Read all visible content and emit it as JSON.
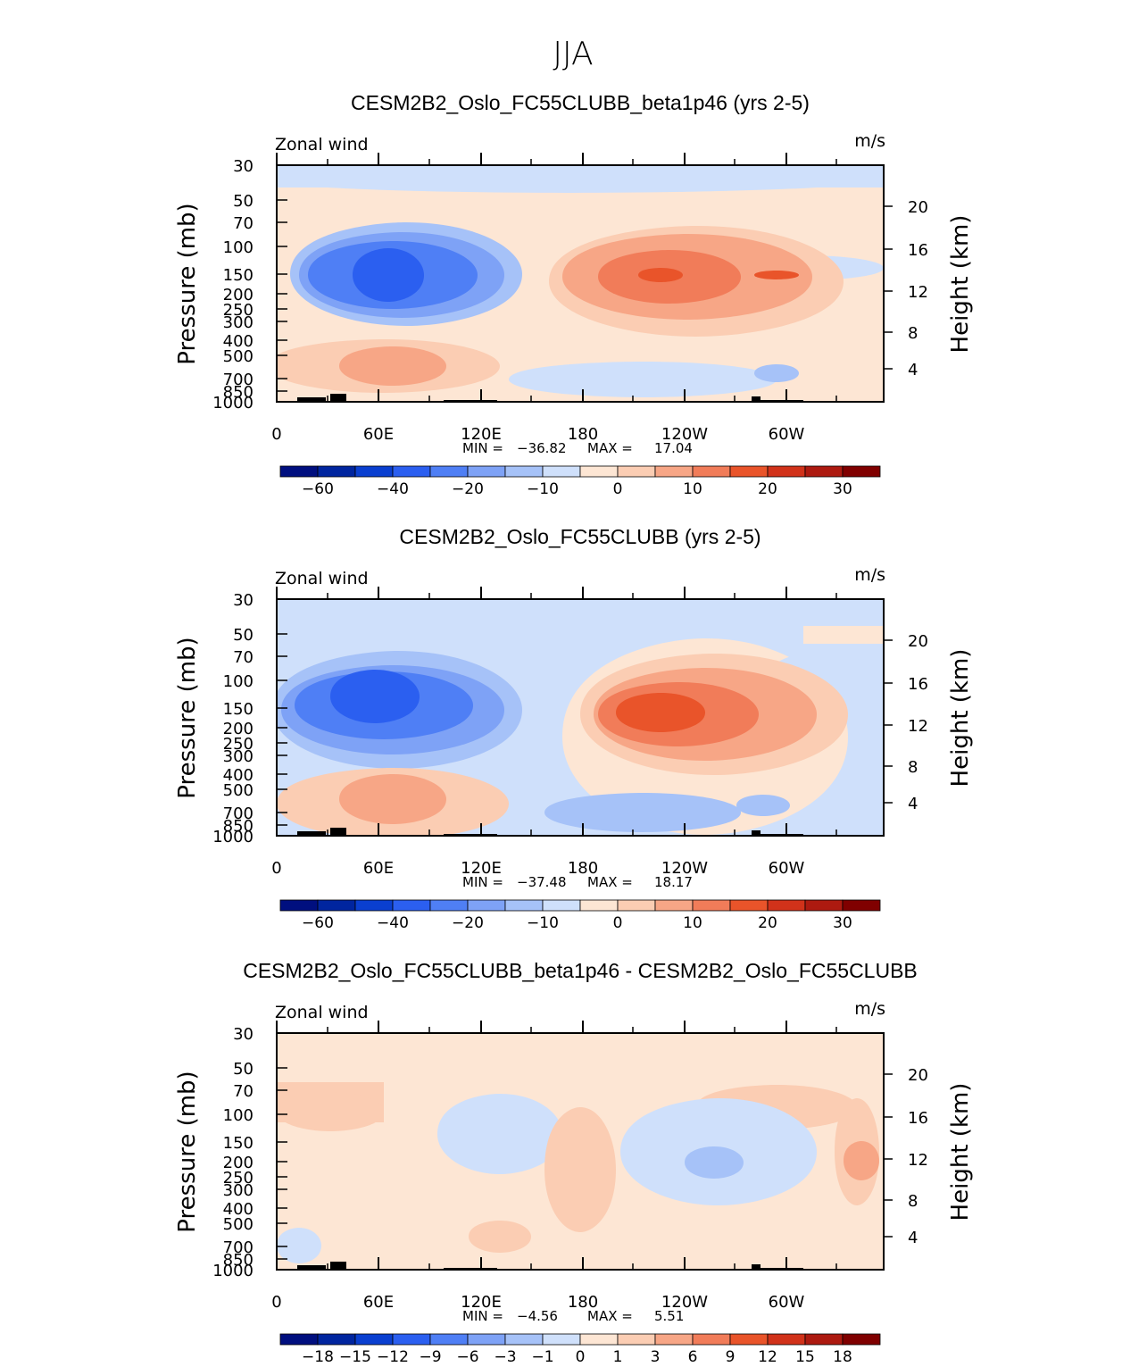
{
  "page_title": "JJA",
  "colors": {
    "blues": [
      "#000f7f",
      "#00259f",
      "#0a3fd0",
      "#2b5ff0",
      "#4f7ff5",
      "#7ea2f6",
      "#a6c2f8",
      "#cfe0fb"
    ],
    "reds": [
      "#fde6d4",
      "#fbcdb3",
      "#f7a686",
      "#f17c59",
      "#e9542a",
      "#d1321a",
      "#ad1a10",
      "#800000"
    ],
    "topo": "#000000"
  },
  "chart_data": [
    {
      "type": "heatmap",
      "title": "CESM2B2_Oslo_FC55CLUBB_beta1p46 (yrs 2-5)",
      "left_label": "Zonal wind",
      "right_label": "m/s",
      "ylabel": "Pressure (mb)",
      "y2label": "Height (km)",
      "xticks": [
        "0",
        "60E",
        "120E",
        "180",
        "120W",
        "60W"
      ],
      "yticks": [
        "30",
        "50",
        "70",
        "100",
        "150",
        "200",
        "250",
        "300",
        "400",
        "500",
        "700",
        "850",
        "1000"
      ],
      "y2ticks": [
        "20",
        "16",
        "12",
        "8",
        "4"
      ],
      "min_label": "MIN =",
      "min_value": "−36.82",
      "max_label": "MAX =",
      "max_value": "17.04",
      "colorbar_labels": [
        "−60",
        "−40",
        "−20",
        "−10",
        "0",
        "10",
        "20",
        "30"
      ],
      "min": -36.82,
      "max": 17.04
    },
    {
      "type": "heatmap",
      "title": "CESM2B2_Oslo_FC55CLUBB (yrs 2-5)",
      "left_label": "Zonal wind",
      "right_label": "m/s",
      "ylabel": "Pressure (mb)",
      "y2label": "Height (km)",
      "xticks": [
        "0",
        "60E",
        "120E",
        "180",
        "120W",
        "60W"
      ],
      "yticks": [
        "30",
        "50",
        "70",
        "100",
        "150",
        "200",
        "250",
        "300",
        "400",
        "500",
        "700",
        "850",
        "1000"
      ],
      "y2ticks": [
        "20",
        "16",
        "12",
        "8",
        "4"
      ],
      "min_label": "MIN =",
      "min_value": "−37.48",
      "max_label": "MAX =",
      "max_value": "18.17",
      "colorbar_labels": [
        "−60",
        "−40",
        "−20",
        "−10",
        "0",
        "10",
        "20",
        "30"
      ],
      "min": -37.48,
      "max": 18.17
    },
    {
      "type": "heatmap",
      "title": "CESM2B2_Oslo_FC55CLUBB_beta1p46 - CESM2B2_Oslo_FC55CLUBB",
      "left_label": "Zonal wind",
      "right_label": "m/s",
      "ylabel": "Pressure (mb)",
      "y2label": "Height (km)",
      "xticks": [
        "0",
        "60E",
        "120E",
        "180",
        "120W",
        "60W"
      ],
      "yticks": [
        "30",
        "50",
        "70",
        "100",
        "150",
        "200",
        "250",
        "300",
        "400",
        "500",
        "700",
        "850",
        "1000"
      ],
      "y2ticks": [
        "20",
        "16",
        "12",
        "8",
        "4"
      ],
      "min_label": "MIN =",
      "min_value": "−4.56",
      "max_label": "MAX =",
      "max_value": "5.51",
      "colorbar_labels": [
        "−18",
        "−15",
        "−12",
        "−9",
        "−6",
        "−3",
        "−1",
        "0",
        "1",
        "3",
        "6",
        "9",
        "12",
        "15",
        "18"
      ],
      "min": -4.56,
      "max": 5.51
    }
  ]
}
